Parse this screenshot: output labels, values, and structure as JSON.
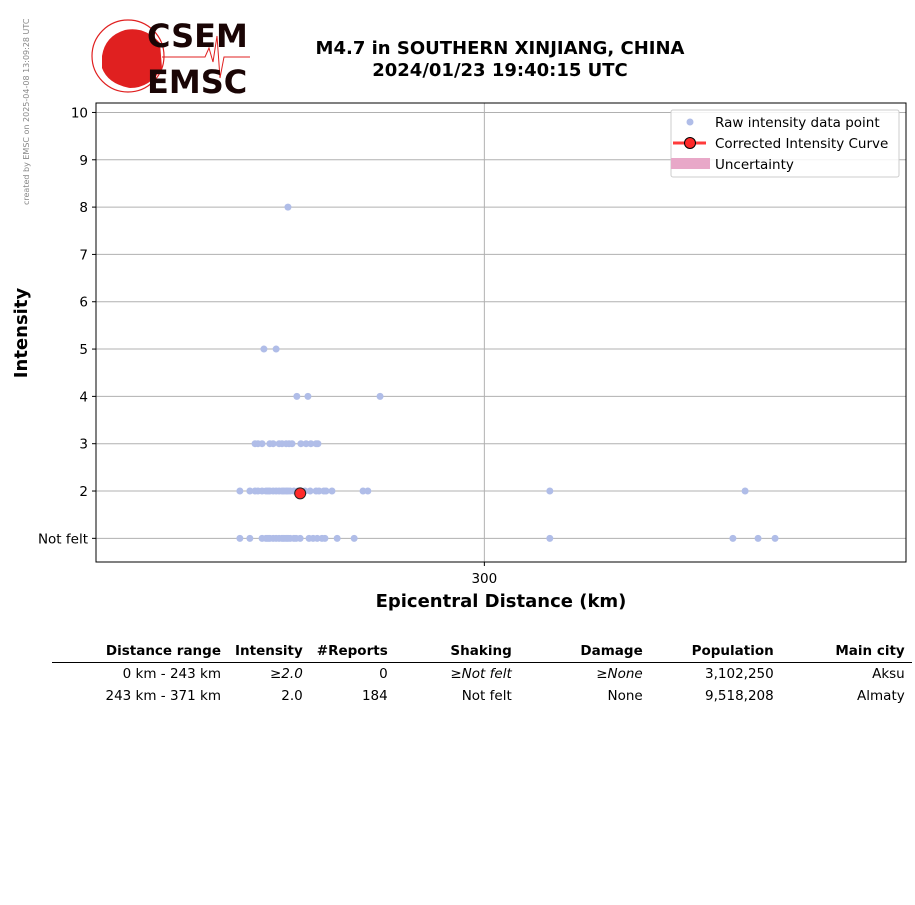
{
  "watermark": "created by EMSC on 2025-04-08 13:09:28 UTC",
  "logo": {
    "line1": "CSEM",
    "line2": "EMSC"
  },
  "title_line1": "M4.7 in SOUTHERN XINJIANG, CHINA",
  "title_line2": "2024/01/23 19:40:15 UTC",
  "chart_data": {
    "type": "scatter",
    "xlabel": "Epicentral Distance (km)",
    "ylabel": "Intensity",
    "xlim": [
      195,
      414
    ],
    "ylim": [
      0.5,
      10.2
    ],
    "xticks": [
      300
    ],
    "xtick_labels": [
      "300"
    ],
    "yticks": [
      1,
      2,
      3,
      4,
      5,
      6,
      7,
      8,
      9,
      10
    ],
    "ytick_labels": [
      "Not felt",
      "2",
      "3",
      "4",
      "5",
      "6",
      "7",
      "8",
      "9",
      "10"
    ],
    "grid": true,
    "legend_position": "top-right",
    "legend": [
      "Raw intensity data point",
      "Corrected Intensity Curve",
      "Uncertainty"
    ],
    "colors": {
      "raw": "#b0bde8",
      "corrected": "#ff2a2a",
      "uncertainty": "#e8a8c8"
    },
    "raw_points": [
      [
        246.9,
        8
      ],
      [
        240.4,
        5
      ],
      [
        243.7,
        5
      ],
      [
        249.3,
        4
      ],
      [
        252.3,
        4
      ],
      [
        271.8,
        4
      ],
      [
        238.0,
        3
      ],
      [
        238.8,
        3
      ],
      [
        239.9,
        3
      ],
      [
        242.0,
        3
      ],
      [
        242.9,
        3
      ],
      [
        244.5,
        3
      ],
      [
        245.3,
        3
      ],
      [
        246.4,
        3
      ],
      [
        247.2,
        3
      ],
      [
        248.0,
        3
      ],
      [
        250.4,
        3
      ],
      [
        251.8,
        3
      ],
      [
        253.1,
        3
      ],
      [
        254.5,
        3
      ],
      [
        255.0,
        3
      ],
      [
        233.9,
        2
      ],
      [
        236.6,
        2
      ],
      [
        238.0,
        2
      ],
      [
        238.8,
        2
      ],
      [
        239.9,
        2
      ],
      [
        240.96,
        2
      ],
      [
        241.5,
        2
      ],
      [
        242.0,
        2
      ],
      [
        242.9,
        2
      ],
      [
        243.7,
        2
      ],
      [
        244.5,
        2
      ],
      [
        245.3,
        2
      ],
      [
        245.8,
        2
      ],
      [
        246.4,
        2
      ],
      [
        246.9,
        2
      ],
      [
        247.5,
        2
      ],
      [
        248.5,
        2
      ],
      [
        249.6,
        2
      ],
      [
        251.5,
        2
      ],
      [
        252.9,
        2
      ],
      [
        254.5,
        2
      ],
      [
        255.3,
        2
      ],
      [
        256.6,
        2
      ],
      [
        257.2,
        2
      ],
      [
        258.8,
        2
      ],
      [
        267.2,
        2
      ],
      [
        268.5,
        2
      ],
      [
        317.7,
        2
      ],
      [
        370.5,
        2
      ],
      [
        233.9,
        1
      ],
      [
        236.6,
        1
      ],
      [
        239.9,
        1
      ],
      [
        240.96,
        1
      ],
      [
        241.5,
        1
      ],
      [
        242.0,
        1
      ],
      [
        242.9,
        1
      ],
      [
        243.7,
        1
      ],
      [
        244.5,
        1
      ],
      [
        245.3,
        1
      ],
      [
        245.8,
        1
      ],
      [
        246.4,
        1
      ],
      [
        246.9,
        1
      ],
      [
        247.5,
        1
      ],
      [
        248.5,
        1
      ],
      [
        249.1,
        1
      ],
      [
        250.2,
        1
      ],
      [
        252.6,
        1
      ],
      [
        253.7,
        1
      ],
      [
        254.8,
        1
      ],
      [
        256.1,
        1
      ],
      [
        256.9,
        1
      ],
      [
        260.2,
        1
      ],
      [
        264.8,
        1
      ],
      [
        317.7,
        1
      ],
      [
        367.2,
        1
      ],
      [
        374.0,
        1
      ],
      [
        378.6,
        1
      ]
    ],
    "corrected_points": [
      [
        250.2,
        1.95
      ]
    ]
  },
  "table": {
    "headers": [
      "Distance range",
      "Intensity",
      "#Reports",
      "Shaking",
      "Damage",
      "Population",
      "Main city"
    ],
    "rows": [
      {
        "range": "0 km -  243 km",
        "intensity": "≥2.0",
        "reports": "0",
        "shaking": "≥Not felt",
        "damage": "≥None",
        "population": "3,102,250",
        "city": "Aksu"
      },
      {
        "range": "243 km -  371 km",
        "intensity": "2.0",
        "reports": "184",
        "shaking": "Not felt",
        "damage": "None",
        "population": "9,518,208",
        "city": "Almaty"
      }
    ]
  }
}
